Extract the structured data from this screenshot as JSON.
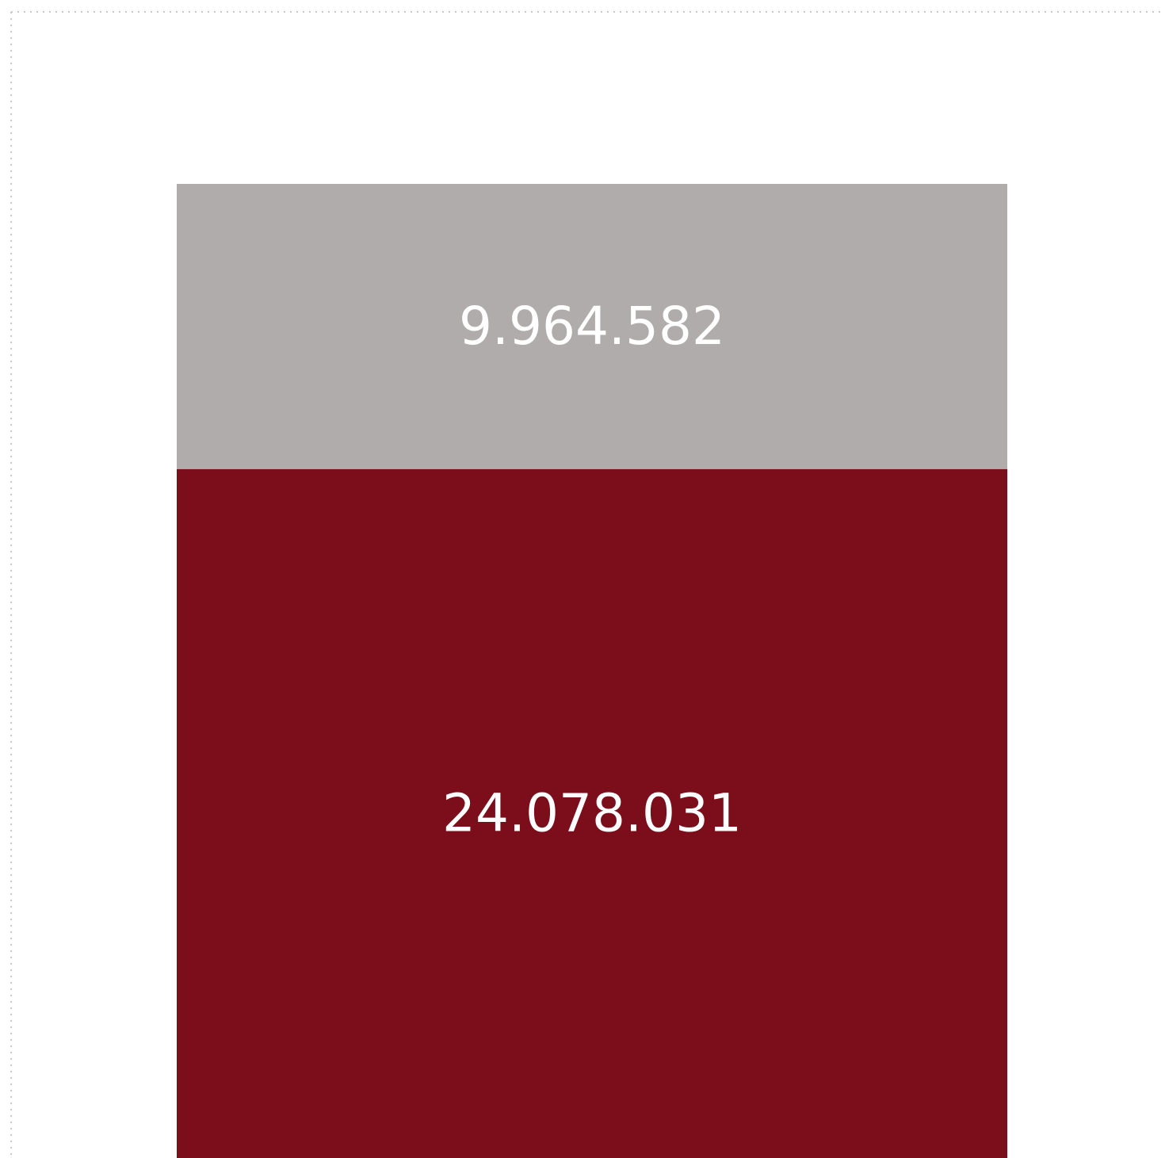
{
  "chart_data": {
    "type": "bar",
    "stacked": true,
    "categories": [
      null
    ],
    "series": [
      {
        "color": "#7b0e1a",
        "values": [
          24078031
        ],
        "value_labels": [
          "24.078.031"
        ]
      },
      {
        "color": "#b0acab",
        "values": [
          9964582
        ],
        "value_labels": [
          "9.964.582"
        ]
      }
    ]
  }
}
